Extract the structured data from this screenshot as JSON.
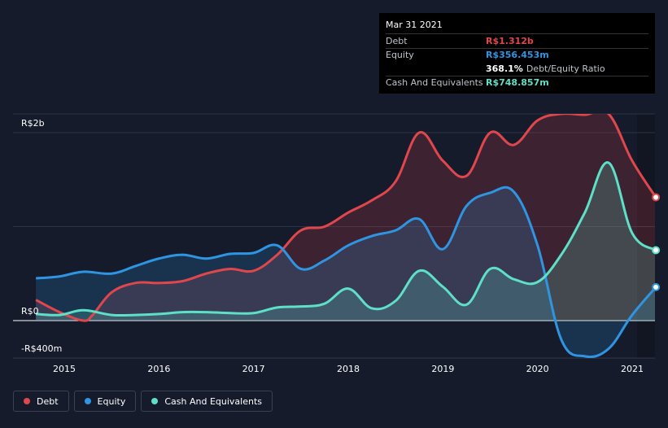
{
  "chart_data": {
    "type": "area",
    "title": "",
    "xlabel": "",
    "ylabel": "",
    "y_tick_labels": [
      {
        "value": 2000,
        "label": "R$2b"
      },
      {
        "value": 0,
        "label": "R$0"
      },
      {
        "value": -400,
        "label": "-R$400m"
      }
    ],
    "ylim": [
      -400,
      2250
    ],
    "x_tick_labels": [
      "2015",
      "2016",
      "2017",
      "2018",
      "2019",
      "2020",
      "2021"
    ],
    "xlim": [
      2014.7,
      2021.25
    ],
    "grid": true,
    "legend_position": "bottom-left",
    "series": [
      {
        "name": "Debt",
        "color": "#e0474c",
        "x": [
          2014.7,
          2014.95,
          2015.2,
          2015.3,
          2015.5,
          2015.75,
          2016.0,
          2016.25,
          2016.5,
          2016.75,
          2017.0,
          2017.25,
          2017.5,
          2017.75,
          2018.0,
          2018.25,
          2018.5,
          2018.75,
          2019.0,
          2019.25,
          2019.5,
          2019.75,
          2020.0,
          2020.25,
          2020.5,
          2020.75,
          2021.0,
          2021.25
        ],
        "values": [
          220,
          90,
          0,
          60,
          300,
          400,
          400,
          420,
          500,
          550,
          530,
          700,
          960,
          1000,
          1150,
          1280,
          1480,
          2000,
          1700,
          1540,
          2000,
          1870,
          2130,
          2200,
          2190,
          2200,
          1700,
          1312
        ]
      },
      {
        "name": "Equity",
        "color": "#2f95e2",
        "x": [
          2014.7,
          2014.95,
          2015.2,
          2015.5,
          2015.75,
          2016.0,
          2016.25,
          2016.5,
          2016.75,
          2017.0,
          2017.25,
          2017.5,
          2017.75,
          2018.0,
          2018.25,
          2018.5,
          2018.75,
          2019.0,
          2019.25,
          2019.5,
          2019.75,
          2020.0,
          2020.25,
          2020.5,
          2020.75,
          2021.0,
          2021.25
        ],
        "values": [
          450,
          470,
          520,
          500,
          580,
          660,
          700,
          660,
          710,
          720,
          800,
          550,
          640,
          800,
          900,
          960,
          1080,
          760,
          1220,
          1360,
          1370,
          800,
          -200,
          -380,
          -300,
          60,
          356
        ]
      },
      {
        "name": "Cash And Equivalents",
        "color": "#5ee0c8",
        "x": [
          2014.7,
          2014.95,
          2015.2,
          2015.5,
          2015.75,
          2016.0,
          2016.25,
          2016.5,
          2016.75,
          2017.0,
          2017.25,
          2017.5,
          2017.75,
          2018.0,
          2018.25,
          2018.5,
          2018.75,
          2019.0,
          2019.25,
          2019.5,
          2019.75,
          2020.0,
          2020.25,
          2020.5,
          2020.75,
          2021.0,
          2021.25
        ],
        "values": [
          70,
          60,
          110,
          60,
          60,
          70,
          90,
          90,
          80,
          80,
          140,
          150,
          180,
          340,
          130,
          210,
          530,
          360,
          170,
          550,
          440,
          410,
          700,
          1150,
          1680,
          930,
          749
        ]
      }
    ]
  },
  "tooltip": {
    "date": "Mar 31 2021",
    "debt_label": "Debt",
    "debt_value": "R$1.312b",
    "equity_label": "Equity",
    "equity_value": "R$356.453m",
    "ratio_value": "368.1%",
    "ratio_label": "Debt/Equity Ratio",
    "cash_label": "Cash And Equivalents",
    "cash_value": "R$748.857m"
  },
  "legend": {
    "debt": "Debt",
    "equity": "Equity",
    "cash": "Cash And Equivalents"
  },
  "colors": {
    "debt": "#e0474c",
    "equity": "#2f95e2",
    "cash": "#5ee0c8",
    "background": "#151b2b"
  }
}
